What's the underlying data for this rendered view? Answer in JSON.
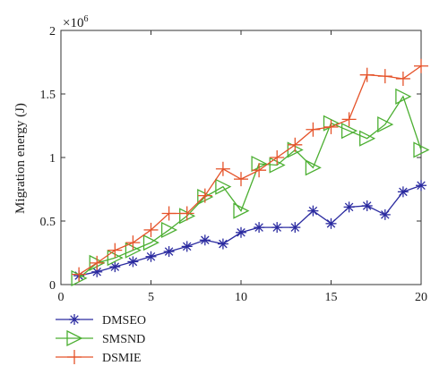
{
  "chart_data": {
    "type": "line",
    "title": "",
    "xlabel": "",
    "ylabel": "Migration energy (J)",
    "y_multiplier_label": "×10",
    "y_multiplier_exp": "6",
    "xlim": [
      0,
      20
    ],
    "ylim": [
      0,
      2
    ],
    "x_ticks": [
      0,
      5,
      10,
      15,
      20
    ],
    "y_ticks": [
      0,
      0.5,
      1,
      1.5,
      2
    ],
    "x_tick_labels": [
      "0",
      "5",
      "10",
      "15",
      "20"
    ],
    "y_tick_labels": [
      "0",
      "0.5",
      "1",
      "1.5",
      "2"
    ],
    "grid": false,
    "legend_position": "below",
    "x": [
      1,
      2,
      3,
      4,
      5,
      6,
      7,
      8,
      9,
      10,
      11,
      12,
      13,
      14,
      15,
      16,
      17,
      18,
      19,
      20
    ],
    "series": [
      {
        "name": "DMSEO",
        "color": "#2b2ba0",
        "marker": "asterisk",
        "values": [
          0.07,
          0.1,
          0.14,
          0.18,
          0.22,
          0.26,
          0.3,
          0.35,
          0.32,
          0.41,
          0.45,
          0.45,
          0.45,
          0.58,
          0.48,
          0.61,
          0.62,
          0.55,
          0.73,
          0.78
        ]
      },
      {
        "name": "SMSND",
        "color": "#4caf32",
        "marker": "triangle-right",
        "values": [
          0.05,
          0.17,
          0.21,
          0.27,
          0.33,
          0.43,
          0.54,
          0.69,
          0.77,
          0.58,
          0.95,
          0.94,
          1.06,
          0.92,
          1.27,
          1.21,
          1.15,
          1.26,
          1.48,
          1.06
        ]
      },
      {
        "name": "DSMIE",
        "color": "#e5532a",
        "marker": "plus",
        "values": [
          0.08,
          0.17,
          0.27,
          0.33,
          0.43,
          0.56,
          0.56,
          0.7,
          0.91,
          0.83,
          0.9,
          1.0,
          1.1,
          1.22,
          1.24,
          1.3,
          1.65,
          1.64,
          1.62,
          1.72
        ]
      }
    ]
  }
}
